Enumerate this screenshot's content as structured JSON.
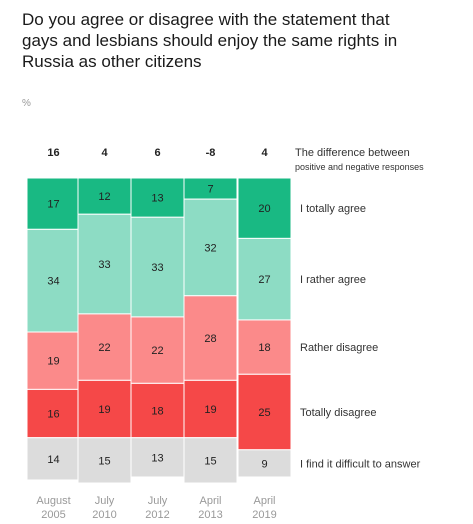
{
  "title": "Do you agree or disagree with the statement that gays and lesbians should enjoy the same rights in Russia as other citizens",
  "unit": "%",
  "difference_label": "The difference between positive and negative responses",
  "chart_data": {
    "type": "bar",
    "stacked": true,
    "normalized_to": 100,
    "categories": [
      {
        "line1": "August",
        "line2": "2005"
      },
      {
        "line1": "July",
        "line2": "2010"
      },
      {
        "line1": "July",
        "line2": "2012"
      },
      {
        "line1": "April",
        "line2": "2013"
      },
      {
        "line1": "April",
        "line2": "2019"
      }
    ],
    "differences": [
      "16",
      "4",
      "6",
      "-8",
      "4"
    ],
    "series": [
      {
        "name": "I totally agree",
        "color": "#19b983",
        "values": [
          17,
          12,
          13,
          7,
          20
        ]
      },
      {
        "name": "I rather agree",
        "color": "#8ddcc4",
        "values": [
          34,
          33,
          33,
          32,
          27
        ]
      },
      {
        "name": "Rather disagree",
        "color": "#fb8a8a",
        "values": [
          19,
          22,
          22,
          28,
          18
        ]
      },
      {
        "name": "Totally disagree",
        "color": "#f54848",
        "values": [
          16,
          19,
          18,
          19,
          25
        ]
      },
      {
        "name": "I find it difficult to answer",
        "color": "#dcdcdc",
        "values": [
          14,
          15,
          13,
          15,
          9
        ]
      }
    ]
  }
}
